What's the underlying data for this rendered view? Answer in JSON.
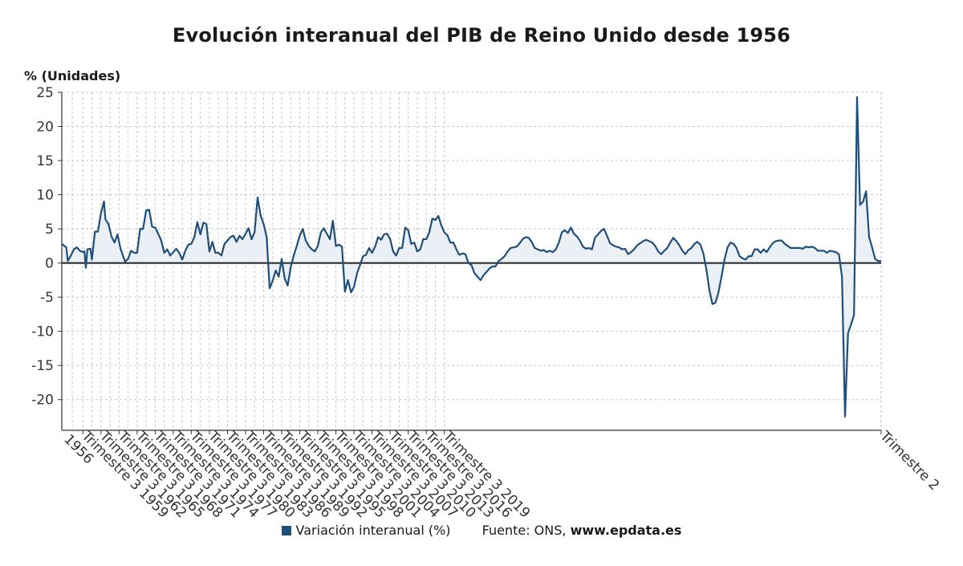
{
  "chart_data": {
    "type": "area",
    "title": "Evolución interanual del PIB de Reino Unido desde 1956",
    "ylabel": "% (Unidades)",
    "ylim": [
      -24.5,
      25
    ],
    "yticks": [
      25,
      20,
      15,
      10,
      5,
      0,
      -5,
      -10,
      -15,
      -20
    ],
    "grid": true,
    "line_color": "#1f4e79",
    "fill_color": "#e8eef5",
    "x_first_label": "1956",
    "x_tick_labels": [
      "Trimestre 3 1959",
      "Trimestre 3 1962",
      "Trimestre 3 1965",
      "Trimestre 3 1968",
      "Trimestre 3 1971",
      "Trimestre 3 1974",
      "Trimestre 3 1977",
      "Trimestre 3 1980",
      "Trimestre 3 1983",
      "Trimestre 3 1986",
      "Trimestre 3 1989",
      "Trimestre 3 1992",
      "Trimestre 3 1995",
      "Trimestre 3 1998",
      "Trimestre 3 2001",
      "Trimestre 3 2004",
      "Trimestre 3 2007",
      "Trimestre 3 2010",
      "Trimestre 3 2013",
      "Trimestre 3 2016",
      "Trimestre 3 2019",
      "Trimestre 2"
    ],
    "series": [
      {
        "name": "Variación interanual (%)",
        "points": [
          [
            1956.0,
            2.8
          ],
          [
            1956.75,
            2.3
          ],
          [
            1957.0,
            0.3
          ],
          [
            1957.5,
            1.1
          ],
          [
            1958.0,
            2.0
          ],
          [
            1958.5,
            2.3
          ],
          [
            1959.0,
            1.8
          ],
          [
            1959.5,
            1.6
          ],
          [
            1959.75,
            1.7
          ],
          [
            1960.0,
            -0.7
          ],
          [
            1960.25,
            2.0
          ],
          [
            1960.75,
            2.1
          ],
          [
            1961.0,
            0.5
          ],
          [
            1961.5,
            4.6
          ],
          [
            1962.0,
            4.6
          ],
          [
            1962.5,
            7.3
          ],
          [
            1963.0,
            9.0
          ],
          [
            1963.25,
            6.4
          ],
          [
            1963.75,
            5.7
          ],
          [
            1964.25,
            3.9
          ],
          [
            1964.75,
            3.0
          ],
          [
            1965.25,
            4.2
          ],
          [
            1965.75,
            2.1
          ],
          [
            1966.5,
            0.2
          ],
          [
            1967.0,
            0.6
          ],
          [
            1967.5,
            1.8
          ],
          [
            1968.0,
            1.5
          ],
          [
            1968.5,
            1.5
          ],
          [
            1969.0,
            5.0
          ],
          [
            1969.5,
            5.0
          ],
          [
            1970.0,
            7.7
          ],
          [
            1970.5,
            7.8
          ],
          [
            1971.0,
            5.3
          ],
          [
            1971.5,
            5.2
          ],
          [
            1972.0,
            4.3
          ],
          [
            1972.5,
            3.3
          ],
          [
            1973.0,
            1.5
          ],
          [
            1973.5,
            2.0
          ],
          [
            1974.0,
            1.1
          ],
          [
            1974.5,
            1.6
          ],
          [
            1975.0,
            2.1
          ],
          [
            1975.5,
            1.5
          ],
          [
            1976.0,
            0.5
          ],
          [
            1976.5,
            1.8
          ],
          [
            1977.0,
            2.7
          ],
          [
            1977.5,
            2.8
          ],
          [
            1978.0,
            3.8
          ],
          [
            1978.5,
            6.0
          ],
          [
            1979.0,
            4.2
          ],
          [
            1979.5,
            5.9
          ],
          [
            1980.0,
            5.7
          ],
          [
            1980.5,
            1.7
          ],
          [
            1981.0,
            3.1
          ],
          [
            1981.5,
            1.5
          ],
          [
            1982.0,
            1.5
          ],
          [
            1982.5,
            1.1
          ],
          [
            1983.0,
            2.8
          ],
          [
            1983.5,
            3.3
          ],
          [
            1984.0,
            3.8
          ],
          [
            1984.5,
            4.0
          ],
          [
            1985.0,
            3.1
          ],
          [
            1985.5,
            4.0
          ],
          [
            1986.0,
            3.5
          ],
          [
            1986.5,
            4.3
          ],
          [
            1987.0,
            5.1
          ],
          [
            1987.5,
            3.5
          ],
          [
            1988.0,
            4.5
          ],
          [
            1988.5,
            9.6
          ],
          [
            1989.0,
            7.0
          ],
          [
            1989.5,
            5.7
          ],
          [
            1990.0,
            3.8
          ],
          [
            1990.5,
            -3.7
          ],
          [
            1991.0,
            -2.6
          ],
          [
            1991.5,
            -1.1
          ],
          [
            1992.0,
            -2.0
          ],
          [
            1992.5,
            0.6
          ],
          [
            1993.0,
            -2.3
          ],
          [
            1993.5,
            -3.3
          ],
          [
            1994.0,
            -0.6
          ],
          [
            1994.5,
            1.1
          ],
          [
            1995.0,
            2.5
          ],
          [
            1995.5,
            4.0
          ],
          [
            1996.0,
            5.0
          ],
          [
            1996.5,
            3.3
          ],
          [
            1997.0,
            2.5
          ],
          [
            1997.5,
            2.0
          ],
          [
            1998.0,
            1.7
          ],
          [
            1998.5,
            2.5
          ],
          [
            1999.0,
            4.5
          ],
          [
            1999.5,
            5.1
          ],
          [
            2000.0,
            4.3
          ],
          [
            2000.5,
            3.5
          ],
          [
            2001.0,
            6.2
          ],
          [
            2001.5,
            2.5
          ],
          [
            2002.0,
            2.7
          ],
          [
            2002.5,
            2.4
          ],
          [
            2003.0,
            -4.2
          ],
          [
            2003.5,
            -2.5
          ],
          [
            2004.0,
            -4.3
          ],
          [
            2004.5,
            -3.5
          ],
          [
            2005.0,
            -1.5
          ],
          [
            2005.5,
            -0.3
          ],
          [
            2006.0,
            1.0
          ],
          [
            2006.5,
            1.2
          ],
          [
            2007.0,
            2.2
          ],
          [
            2007.5,
            1.5
          ],
          [
            2008.0,
            2.4
          ],
          [
            2008.5,
            3.8
          ],
          [
            2009.0,
            3.4
          ],
          [
            2009.5,
            4.2
          ],
          [
            2010.0,
            4.3
          ],
          [
            2010.5,
            3.5
          ],
          [
            2011.0,
            1.7
          ],
          [
            2011.5,
            1.1
          ],
          [
            2012.0,
            2.2
          ],
          [
            2012.5,
            2.2
          ],
          [
            2013.0,
            5.2
          ],
          [
            2013.5,
            4.8
          ],
          [
            2014.0,
            2.8
          ],
          [
            2014.5,
            3.0
          ],
          [
            2015.0,
            1.7
          ],
          [
            2015.5,
            2.0
          ],
          [
            2016.0,
            3.5
          ],
          [
            2016.5,
            3.5
          ],
          [
            2017.0,
            4.5
          ],
          [
            2017.5,
            6.5
          ],
          [
            2018.0,
            6.3
          ],
          [
            2018.5,
            6.9
          ],
          [
            2019.0,
            5.5
          ],
          [
            2019.5,
            4.5
          ],
          [
            2020.0,
            4.1
          ],
          [
            2020.5,
            3.0
          ],
          [
            2021.0,
            3.0
          ],
          [
            2021.5,
            2.0
          ],
          [
            2022.0,
            1.2
          ],
          [
            2022.5,
            1.4
          ],
          [
            2023.0,
            1.3
          ],
          [
            2023.5,
            0.0
          ],
          [
            2024.0,
            -0.3
          ],
          [
            2024.5,
            -1.5
          ],
          [
            2025.0,
            -2.0
          ],
          [
            2025.5,
            -2.5
          ],
          [
            2026.0,
            -1.8
          ],
          [
            2026.5,
            -1.3
          ],
          [
            2027.0,
            -0.8
          ],
          [
            2027.5,
            -0.5
          ],
          [
            2028.0,
            -0.5
          ],
          [
            2028.5,
            0.3
          ],
          [
            2029.0,
            0.6
          ],
          [
            2029.5,
            1.0
          ],
          [
            2030.0,
            1.7
          ],
          [
            2030.5,
            2.2
          ],
          [
            2031.0,
            2.3
          ],
          [
            2031.5,
            2.4
          ],
          [
            2032.0,
            2.9
          ],
          [
            2032.5,
            3.5
          ],
          [
            2033.0,
            3.8
          ],
          [
            2033.5,
            3.7
          ],
          [
            2034.0,
            3.1
          ],
          [
            2034.5,
            2.2
          ],
          [
            2035.0,
            2.0
          ],
          [
            2035.5,
            1.8
          ],
          [
            2036.0,
            1.9
          ],
          [
            2036.5,
            1.6
          ],
          [
            2037.0,
            1.8
          ],
          [
            2037.5,
            1.6
          ],
          [
            2038.0,
            2.0
          ],
          [
            2038.5,
            3.0
          ],
          [
            2039.0,
            4.5
          ],
          [
            2039.5,
            4.8
          ],
          [
            2040.0,
            4.4
          ],
          [
            2040.5,
            5.2
          ],
          [
            2041.0,
            4.3
          ],
          [
            2041.5,
            3.9
          ],
          [
            2042.0,
            3.3
          ],
          [
            2042.5,
            2.4
          ],
          [
            2043.0,
            2.1
          ],
          [
            2043.5,
            2.2
          ],
          [
            2044.0,
            2.0
          ],
          [
            2044.5,
            3.7
          ],
          [
            2045.0,
            4.2
          ],
          [
            2045.5,
            4.7
          ],
          [
            2046.0,
            5.0
          ],
          [
            2046.5,
            4.0
          ],
          [
            2047.0,
            2.9
          ],
          [
            2047.5,
            2.6
          ],
          [
            2048.0,
            2.4
          ],
          [
            2048.5,
            2.3
          ],
          [
            2049.0,
            2.0
          ],
          [
            2049.5,
            2.1
          ],
          [
            2050.0,
            1.3
          ],
          [
            2050.5,
            1.6
          ],
          [
            2051.0,
            2.0
          ],
          [
            2051.5,
            2.6
          ],
          [
            2052.0,
            2.9
          ],
          [
            2052.5,
            3.2
          ],
          [
            2053.0,
            3.4
          ],
          [
            2053.5,
            3.2
          ],
          [
            2054.0,
            3.0
          ],
          [
            2054.5,
            2.5
          ],
          [
            2055.0,
            1.7
          ],
          [
            2055.5,
            1.3
          ],
          [
            2056.0,
            1.8
          ],
          [
            2056.5,
            2.2
          ],
          [
            2057.0,
            3.0
          ],
          [
            2057.5,
            3.7
          ],
          [
            2058.0,
            3.2
          ],
          [
            2058.5,
            2.6
          ],
          [
            2059.0,
            1.8
          ],
          [
            2059.5,
            1.3
          ],
          [
            2060.0,
            1.9
          ],
          [
            2060.5,
            2.2
          ],
          [
            2061.0,
            2.8
          ],
          [
            2061.5,
            3.1
          ],
          [
            2062.0,
            2.7
          ],
          [
            2062.5,
            1.4
          ],
          [
            2063.0,
            -1.0
          ],
          [
            2063.5,
            -4.0
          ],
          [
            2064.0,
            -6.0
          ],
          [
            2064.5,
            -5.8
          ],
          [
            2065.0,
            -4.3
          ],
          [
            2065.5,
            -2.0
          ],
          [
            2066.0,
            0.5
          ],
          [
            2066.5,
            2.3
          ],
          [
            2067.0,
            3.0
          ],
          [
            2067.5,
            2.8
          ],
          [
            2068.0,
            2.2
          ],
          [
            2068.5,
            1.0
          ],
          [
            2069.0,
            0.7
          ],
          [
            2069.5,
            0.5
          ],
          [
            2070.0,
            1.0
          ],
          [
            2070.5,
            1.0
          ],
          [
            2071.0,
            2.0
          ],
          [
            2071.5,
            2.0
          ],
          [
            2072.0,
            1.5
          ],
          [
            2072.5,
            2.0
          ],
          [
            2073.0,
            1.6
          ],
          [
            2073.5,
            2.3
          ],
          [
            2074.0,
            2.9
          ],
          [
            2074.5,
            3.2
          ],
          [
            2075.0,
            3.3
          ],
          [
            2075.5,
            3.3
          ],
          [
            2076.0,
            2.8
          ],
          [
            2076.5,
            2.5
          ],
          [
            2077.0,
            2.2
          ],
          [
            2077.5,
            2.2
          ],
          [
            2078.0,
            2.2
          ],
          [
            2078.5,
            2.2
          ],
          [
            2079.0,
            2.1
          ],
          [
            2079.5,
            2.4
          ],
          [
            2080.0,
            2.3
          ],
          [
            2080.5,
            2.4
          ],
          [
            2081.0,
            2.2
          ],
          [
            2081.5,
            1.8
          ],
          [
            2082.0,
            1.8
          ],
          [
            2082.5,
            1.8
          ],
          [
            2083.0,
            1.5
          ],
          [
            2083.5,
            1.8
          ],
          [
            2084.0,
            1.7
          ],
          [
            2084.5,
            1.6
          ],
          [
            2085.0,
            1.3
          ],
          [
            2085.5,
            -2.0
          ],
          [
            2086.0,
            -22.5
          ],
          [
            2086.5,
            -10.3
          ],
          [
            2087.0,
            -9.0
          ],
          [
            2087.5,
            -7.6
          ],
          [
            2088.0,
            24.3
          ],
          [
            2088.5,
            8.5
          ],
          [
            2089.0,
            9.0
          ],
          [
            2089.5,
            10.5
          ],
          [
            2090.0,
            3.8
          ],
          [
            2090.5,
            2.3
          ],
          [
            2091.0,
            0.6
          ],
          [
            2091.5,
            0.3
          ],
          [
            2092.0,
            0.3
          ]
        ]
      }
    ],
    "legend": {
      "position": "bottom-center"
    }
  },
  "unit_label": "% (Unidades)",
  "legend_label": "Variación interanual (%)",
  "source_prefix": "Fuente: ONS,",
  "source_site": "www.epdata.es"
}
